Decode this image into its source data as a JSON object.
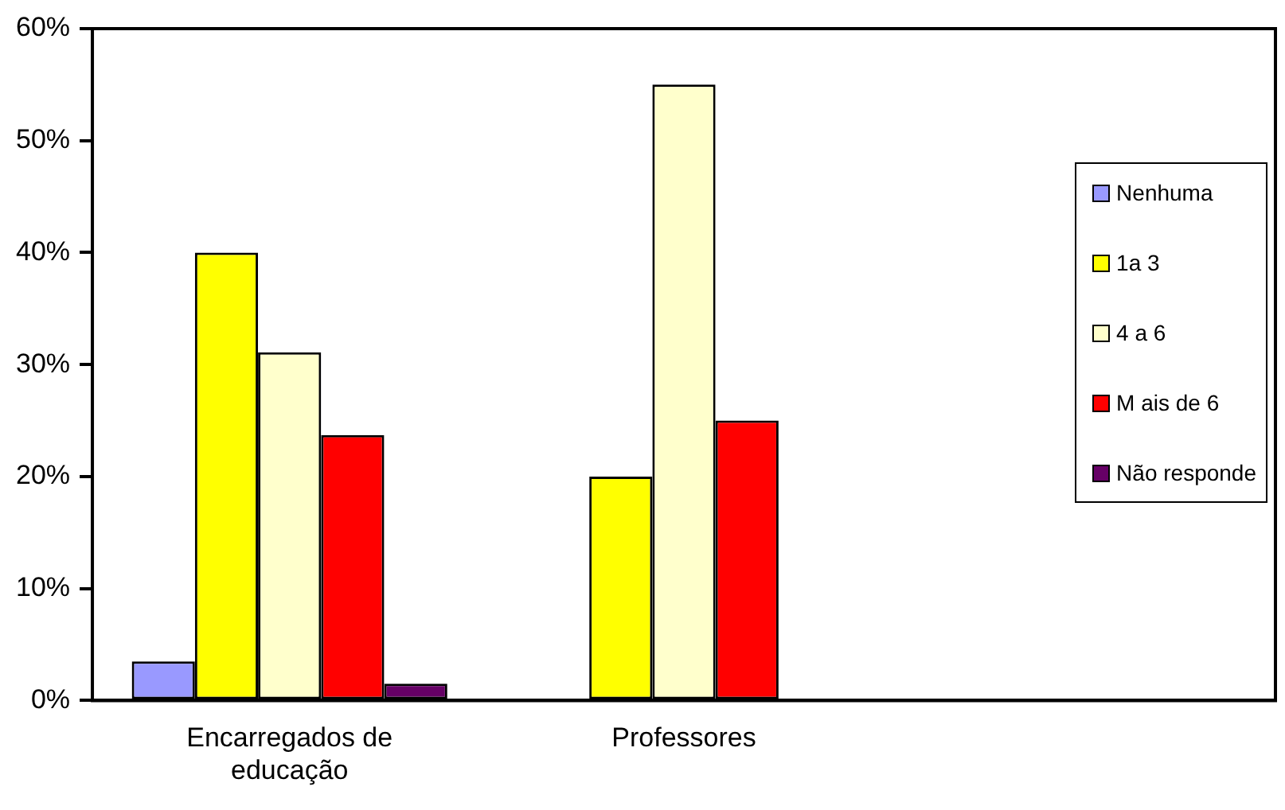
{
  "chart_data": {
    "type": "bar",
    "categories": [
      "Encarregados de educação",
      "Professores",
      null
    ],
    "series": [
      {
        "name": "Nenhuma",
        "color": "#9999ff",
        "values": [
          3.5,
          null,
          null
        ]
      },
      {
        "name": "1a 3",
        "color": "#ffff00",
        "values": [
          40,
          20,
          null
        ]
      },
      {
        "name": "4 a 6",
        "color": "#ffffcc",
        "values": [
          31.1,
          55,
          null
        ]
      },
      {
        "name": "M ais de 6",
        "color": "#ff0000",
        "values": [
          23.7,
          25,
          null
        ]
      },
      {
        "name": "Não responde",
        "color": "#660066",
        "values": [
          1.5,
          null,
          null
        ]
      }
    ],
    "ylim": [
      0,
      60
    ],
    "yticks": [
      {
        "value": 0,
        "label": "0%"
      },
      {
        "value": 10,
        "label": "10%"
      },
      {
        "value": 20,
        "label": "20%"
      },
      {
        "value": 30,
        "label": "30%"
      },
      {
        "value": 40,
        "label": "40%"
      },
      {
        "value": 50,
        "label": "50%"
      },
      {
        "value": 60,
        "label": "60%"
      }
    ],
    "grid": false,
    "legend": "right"
  }
}
